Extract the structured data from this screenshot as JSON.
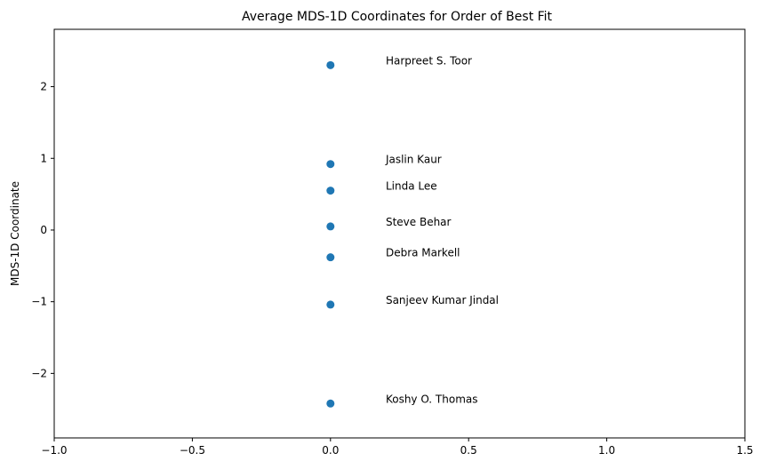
{
  "chart_data": {
    "type": "scatter",
    "title": "Average MDS-1D Coordinates for Order of Best Fit",
    "xlabel": "",
    "ylabel": "MDS-1D Coordinate",
    "xlim": [
      -1.0,
      1.5
    ],
    "ylim": [
      -2.9,
      2.8
    ],
    "xticks": [
      -1.0,
      -0.5,
      0.0,
      0.5,
      1.0,
      1.5
    ],
    "xtick_labels": [
      "−1.0",
      "−0.5",
      "0.0",
      "0.5",
      "1.0",
      "1.5"
    ],
    "yticks": [
      -2,
      -1,
      0,
      1,
      2
    ],
    "ytick_labels": [
      "−2",
      "−1",
      "0",
      "1",
      "2"
    ],
    "grid": false,
    "legend": false,
    "marker_color": "#1f77b4",
    "points": [
      {
        "x": 0,
        "y": 2.3,
        "label": "Harpreet S. Toor"
      },
      {
        "x": 0,
        "y": 0.92,
        "label": "Jaslin Kaur"
      },
      {
        "x": 0,
        "y": 0.55,
        "label": "Linda Lee"
      },
      {
        "x": 0,
        "y": 0.05,
        "label": "Steve Behar"
      },
      {
        "x": 0,
        "y": -0.38,
        "label": "Debra Markell"
      },
      {
        "x": 0,
        "y": -1.04,
        "label": "Sanjeev Kumar Jindal"
      },
      {
        "x": 0,
        "y": -2.42,
        "label": "Koshy O. Thomas"
      }
    ]
  }
}
